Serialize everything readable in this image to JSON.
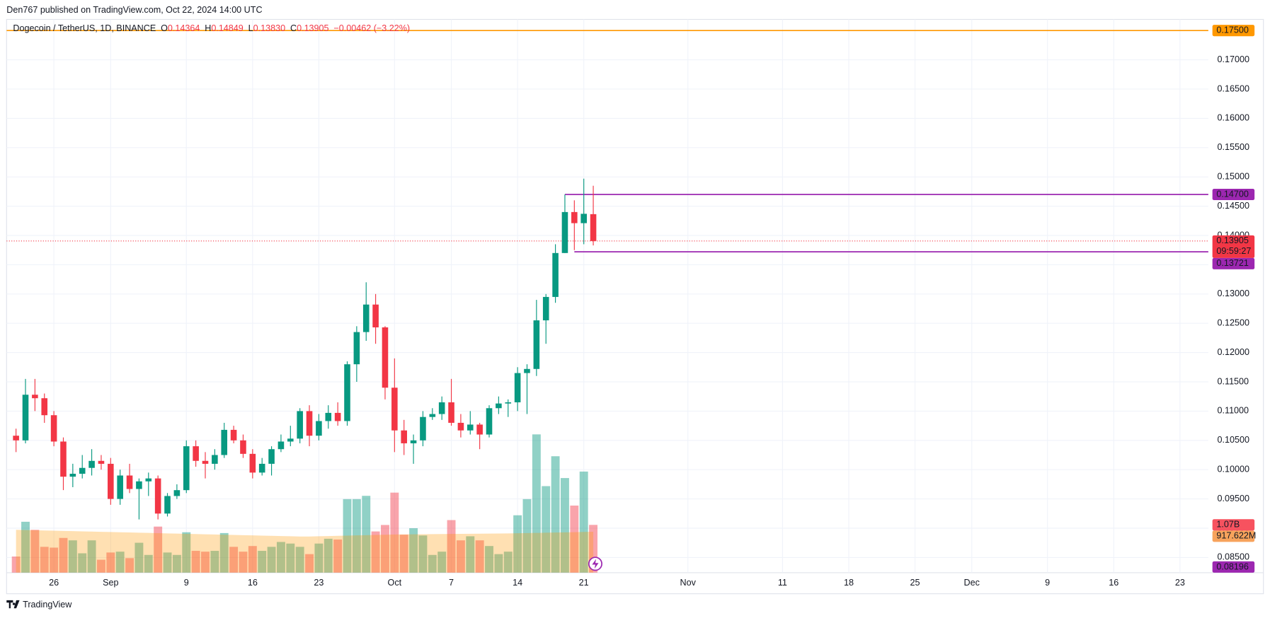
{
  "header": {
    "published": "Den767 published on TradingView.com, Oct 22, 2024 14:00 UTC",
    "brand": "TradingView"
  },
  "chart_data": {
    "type": "candlestick",
    "title": "Dogecoin / TetherUS, 1D, BINANCE",
    "legend_items": [
      {
        "key": "O",
        "value": "0.14364"
      },
      {
        "key": "H",
        "value": "0.14849"
      },
      {
        "key": "L",
        "value": "0.13830"
      },
      {
        "key": "C",
        "value": "0.13905"
      }
    ],
    "change": "−0.00462 (−3.22%)",
    "up_color": "#089981",
    "down_color": "#f23645",
    "x": [
      "2024-08-22",
      "2024-08-23",
      "2024-08-24",
      "2024-08-25",
      "2024-08-26",
      "2024-08-27",
      "2024-08-28",
      "2024-08-29",
      "2024-08-30",
      "2024-08-31",
      "2024-09-01",
      "2024-09-02",
      "2024-09-03",
      "2024-09-04",
      "2024-09-05",
      "2024-09-06",
      "2024-09-07",
      "2024-09-08",
      "2024-09-09",
      "2024-09-10",
      "2024-09-11",
      "2024-09-12",
      "2024-09-13",
      "2024-09-14",
      "2024-09-15",
      "2024-09-16",
      "2024-09-17",
      "2024-09-18",
      "2024-09-19",
      "2024-09-20",
      "2024-09-21",
      "2024-09-22",
      "2024-09-23",
      "2024-09-24",
      "2024-09-25",
      "2024-09-26",
      "2024-09-27",
      "2024-09-28",
      "2024-09-29",
      "2024-09-30",
      "2024-10-01",
      "2024-10-02",
      "2024-10-03",
      "2024-10-04",
      "2024-10-05",
      "2024-10-06",
      "2024-10-07",
      "2024-10-08",
      "2024-10-09",
      "2024-10-10",
      "2024-10-11",
      "2024-10-12",
      "2024-10-13",
      "2024-10-14",
      "2024-10-15",
      "2024-10-16",
      "2024-10-17",
      "2024-10-18",
      "2024-10-19",
      "2024-10-20",
      "2024-10-21",
      "2024-10-22"
    ],
    "open": [
      0.1058,
      0.105,
      0.1128,
      0.1122,
      0.1093,
      0.1048,
      0.0988,
      0.0993,
      0.1003,
      0.1015,
      0.101,
      0.095,
      0.099,
      0.0967,
      0.098,
      0.0985,
      0.0925,
      0.0955,
      0.0965,
      0.104,
      0.1015,
      0.101,
      0.1025,
      0.1068,
      0.105,
      0.1027,
      0.0995,
      0.101,
      0.1035,
      0.1048,
      0.1053,
      0.11,
      0.1058,
      0.1083,
      0.1097,
      0.1083,
      0.118,
      0.1235,
      0.1282,
      0.1243,
      0.114,
      0.1067,
      0.1045,
      0.105,
      0.109,
      0.1095,
      0.1115,
      0.108,
      0.1067,
      0.1077,
      0.106,
      0.1105,
      0.1113,
      0.1115,
      0.1165,
      0.1172,
      0.1255,
      0.1295,
      0.137,
      0.144,
      0.1421,
      0.14364
    ],
    "high": [
      0.107,
      0.1155,
      0.1155,
      0.113,
      0.11,
      0.1055,
      0.101,
      0.1025,
      0.1035,
      0.1025,
      0.102,
      0.1,
      0.101,
      0.0985,
      0.0995,
      0.099,
      0.096,
      0.0975,
      0.105,
      0.105,
      0.103,
      0.1035,
      0.108,
      0.1075,
      0.106,
      0.1035,
      0.102,
      0.104,
      0.106,
      0.1075,
      0.1105,
      0.111,
      0.1095,
      0.111,
      0.1115,
      0.1185,
      0.1245,
      0.132,
      0.13,
      0.1245,
      0.119,
      0.1085,
      0.106,
      0.11,
      0.1105,
      0.1125,
      0.1155,
      0.1095,
      0.11,
      0.108,
      0.111,
      0.1125,
      0.112,
      0.1175,
      0.118,
      0.129,
      0.13,
      0.1385,
      0.147,
      0.146,
      0.1497,
      0.14849
    ],
    "low": [
      0.103,
      0.1045,
      0.11,
      0.108,
      0.104,
      0.0965,
      0.097,
      0.0985,
      0.099,
      0.1,
      0.094,
      0.094,
      0.096,
      0.0915,
      0.0955,
      0.0915,
      0.092,
      0.095,
      0.096,
      0.1005,
      0.0985,
      0.1,
      0.102,
      0.1045,
      0.102,
      0.0985,
      0.099,
      0.099,
      0.103,
      0.104,
      0.1045,
      0.104,
      0.105,
      0.107,
      0.1075,
      0.1075,
      0.115,
      0.122,
      0.1215,
      0.112,
      0.103,
      0.1025,
      0.101,
      0.104,
      0.1085,
      0.1085,
      0.1075,
      0.1055,
      0.106,
      0.1035,
      0.1055,
      0.1095,
      0.109,
      0.11,
      0.1095,
      0.116,
      0.1215,
      0.1285,
      0.137,
      0.1375,
      0.1385,
      0.1383
    ],
    "close": [
      0.105,
      0.1128,
      0.1122,
      0.1093,
      0.1048,
      0.0988,
      0.0993,
      0.1003,
      0.1015,
      0.101,
      0.095,
      0.099,
      0.0967,
      0.098,
      0.0985,
      0.0925,
      0.0955,
      0.0965,
      0.104,
      0.1015,
      0.101,
      0.1025,
      0.1068,
      0.105,
      0.1027,
      0.0995,
      0.101,
      0.1035,
      0.1048,
      0.1053,
      0.11,
      0.1058,
      0.1083,
      0.1097,
      0.1083,
      0.118,
      0.1235,
      0.1282,
      0.1243,
      0.114,
      0.1067,
      0.1045,
      0.105,
      0.109,
      0.1095,
      0.1115,
      0.108,
      0.1067,
      0.1077,
      0.106,
      0.1105,
      0.1113,
      0.1115,
      0.1165,
      0.1172,
      0.1255,
      0.1295,
      0.137,
      0.144,
      0.1421,
      0.1437,
      0.13905
    ],
    "volume": [
      362000000,
      1140000000,
      959000000,
      579000000,
      561000000,
      778000000,
      724000000,
      434000000,
      724000000,
      290000000,
      452000000,
      471000000,
      326000000,
      670000000,
      398000000,
      1032000000,
      452000000,
      398000000,
      905000000,
      489000000,
      471000000,
      489000000,
      887000000,
      579000000,
      471000000,
      597000000,
      489000000,
      579000000,
      688000000,
      652000000,
      579000000,
      416000000,
      652000000,
      760000000,
      742000000,
      1647000000,
      1647000000,
      1720000000,
      923000000,
      1068000000,
      1792000000,
      851000000,
      996000000,
      833000000,
      398000000,
      471000000,
      1177000000,
      724000000,
      815000000,
      724000000,
      597000000,
      416000000,
      471000000,
      1285000000,
      1647000000,
      3095000000,
      1937000000,
      2606000000,
      2118000000,
      1502000000,
      2263000000,
      1070000000
    ],
    "volume_ma": [
      960000000,
      955000000,
      950000000,
      945000000,
      940000000,
      935000000,
      930000000,
      925000000,
      920000000,
      915000000,
      910000000,
      905000000,
      900000000,
      895000000,
      890000000,
      885000000,
      880000000,
      875000000,
      870000000,
      865000000,
      860000000,
      855000000,
      850000000,
      845000000,
      840000000,
      835000000,
      830000000,
      825000000,
      820000000,
      815000000,
      810000000,
      810000000,
      815000000,
      820000000,
      825000000,
      830000000,
      835000000,
      840000000,
      845000000,
      850000000,
      855000000,
      858000000,
      860000000,
      862000000,
      864000000,
      866000000,
      868000000,
      870000000,
      872000000,
      874000000,
      876000000,
      878000000,
      880000000,
      883000000,
      886000000,
      890000000,
      894000000,
      898000000,
      902000000,
      906000000,
      912000000,
      917622000
    ],
    "volume_ma_color": "#ff9800",
    "volume_ylim": [
      0,
      12380000000
    ],
    "xlim": [
      "2024-08-21",
      "2024-12-26"
    ],
    "xticks": [
      {
        "value": "2024-08-26",
        "label": "26"
      },
      {
        "value": "2024-09-01",
        "label": "Sep"
      },
      {
        "value": "2024-09-09",
        "label": "9"
      },
      {
        "value": "2024-09-16",
        "label": "16"
      },
      {
        "value": "2024-09-23",
        "label": "23"
      },
      {
        "value": "2024-10-01",
        "label": "Oct"
      },
      {
        "value": "2024-10-07",
        "label": "7"
      },
      {
        "value": "2024-10-14",
        "label": "14"
      },
      {
        "value": "2024-10-21",
        "label": "21"
      },
      {
        "value": "2024-11-01",
        "label": "Nov"
      },
      {
        "value": "2024-11-11",
        "label": "11"
      },
      {
        "value": "2024-11-18",
        "label": "18"
      },
      {
        "value": "2024-11-25",
        "label": "25"
      },
      {
        "value": "2024-12-01",
        "label": "Dec"
      },
      {
        "value": "2024-12-09",
        "label": "9"
      },
      {
        "value": "2024-12-16",
        "label": "16"
      },
      {
        "value": "2024-12-23",
        "label": "23"
      }
    ],
    "ylim": [
      0.0824,
      0.1769
    ],
    "yticks": [
      {
        "value": 0.17,
        "label": "0.17000"
      },
      {
        "value": 0.165,
        "label": "0.16500"
      },
      {
        "value": 0.16,
        "label": "0.16000"
      },
      {
        "value": 0.155,
        "label": "0.15500"
      },
      {
        "value": 0.15,
        "label": "0.15000"
      },
      {
        "value": 0.145,
        "label": "0.14500"
      },
      {
        "value": 0.14,
        "label": "0.14000"
      },
      {
        "value": 0.135,
        "label": "0.13500"
      },
      {
        "value": 0.13,
        "label": "0.13000"
      },
      {
        "value": 0.125,
        "label": "0.12500"
      },
      {
        "value": 0.12,
        "label": "0.12000"
      },
      {
        "value": 0.115,
        "label": "0.11500"
      },
      {
        "value": 0.11,
        "label": "0.11000"
      },
      {
        "value": 0.105,
        "label": "0.10500"
      },
      {
        "value": 0.1,
        "label": "0.10000"
      },
      {
        "value": 0.095,
        "label": "0.09500"
      },
      {
        "value": 0.09,
        "label": "0.09000"
      },
      {
        "value": 0.085,
        "label": "0.08500"
      }
    ],
    "grid": true,
    "hlines": [
      {
        "value": 0.175,
        "label": "0.17500",
        "color": "#ff9800"
      },
      {
        "value": 0.147,
        "label": "0.14700",
        "color": "#9c27b0",
        "from": "2024-10-19"
      },
      {
        "value": 0.13721,
        "label": "0.13721",
        "color": "#9c27b0",
        "from": "2024-10-20"
      }
    ],
    "last_price": {
      "value": 0.13905,
      "label": "0.13905",
      "countdown": "09:59:27",
      "color": "#f23645"
    },
    "volume_labels": [
      {
        "value": 1070000000,
        "label": "1.07B",
        "color": "#f7525f"
      },
      {
        "value": 917622000,
        "label": "917.622M",
        "color": "#f7a35c"
      }
    ],
    "low_marker": {
      "value": 0.08196,
      "label": "0.08196",
      "color": "#9c27b0"
    }
  }
}
